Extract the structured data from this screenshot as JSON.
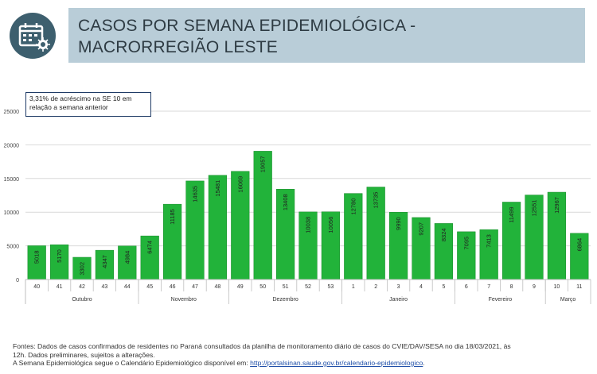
{
  "header": {
    "title_line1": "CASOS POR SEMANA EPIDEMIOLÓGICA -",
    "title_line2": "MACRORREGIÃO LESTE",
    "logo_icon": "calendar-virus-icon"
  },
  "annotation": {
    "line1": "3,31% de acréscimo na SE 10 em",
    "line2": "relação a semana anterior"
  },
  "footer": {
    "line1": "Fontes: Dados de casos confirmados de residentes no Paraná consultados da planilha de monitoramento diário de casos do CVIE/DAV/SESA no dia 18/03/2021, às",
    "line2": "12h. Dados preliminares, sujeitos a alterações.",
    "line3_prefix": "A Semana Epidemiológica segue o Calendário Epidemiológico disponível em: ",
    "link": "http://portalsinan.saude.gov.br/calendario-epidemiologico",
    "line3_suffix": "."
  },
  "chart_data": {
    "type": "bar",
    "title": "CASOS POR SEMANA EPIDEMIOLÓGICA - MACRORREGIÃO LESTE",
    "categories": [
      "40",
      "41",
      "42",
      "43",
      "44",
      "45",
      "46",
      "47",
      "48",
      "49",
      "50",
      "51",
      "52",
      "53",
      "1",
      "2",
      "3",
      "4",
      "5",
      "6",
      "7",
      "8",
      "9",
      "10",
      "11"
    ],
    "values": [
      5018,
      5170,
      3302,
      4347,
      4984,
      6474,
      11185,
      14635,
      15481,
      16069,
      19057,
      13408,
      10038,
      10056,
      12780,
      13735,
      9990,
      9207,
      8324,
      7095,
      7413,
      11499,
      12551,
      12967,
      6864
    ],
    "months": [
      {
        "label": "Outubro",
        "start": 0,
        "end": 4
      },
      {
        "label": "Novembro",
        "start": 5,
        "end": 8
      },
      {
        "label": "Dezembro",
        "start": 9,
        "end": 13
      },
      {
        "label": "Janeiro",
        "start": 14,
        "end": 18
      },
      {
        "label": "Fevereiro",
        "start": 19,
        "end": 22
      },
      {
        "label": "Março",
        "start": 23,
        "end": 24
      }
    ],
    "yticks": [
      0,
      5000,
      10000,
      15000,
      20000,
      25000
    ],
    "ylim": [
      0,
      25000
    ],
    "grid": true,
    "colors": {
      "bar": "#22b33a",
      "bar_edge": "#1a8a2c",
      "grid": "#d9d9d9",
      "axis": "#bfbfbf"
    }
  }
}
